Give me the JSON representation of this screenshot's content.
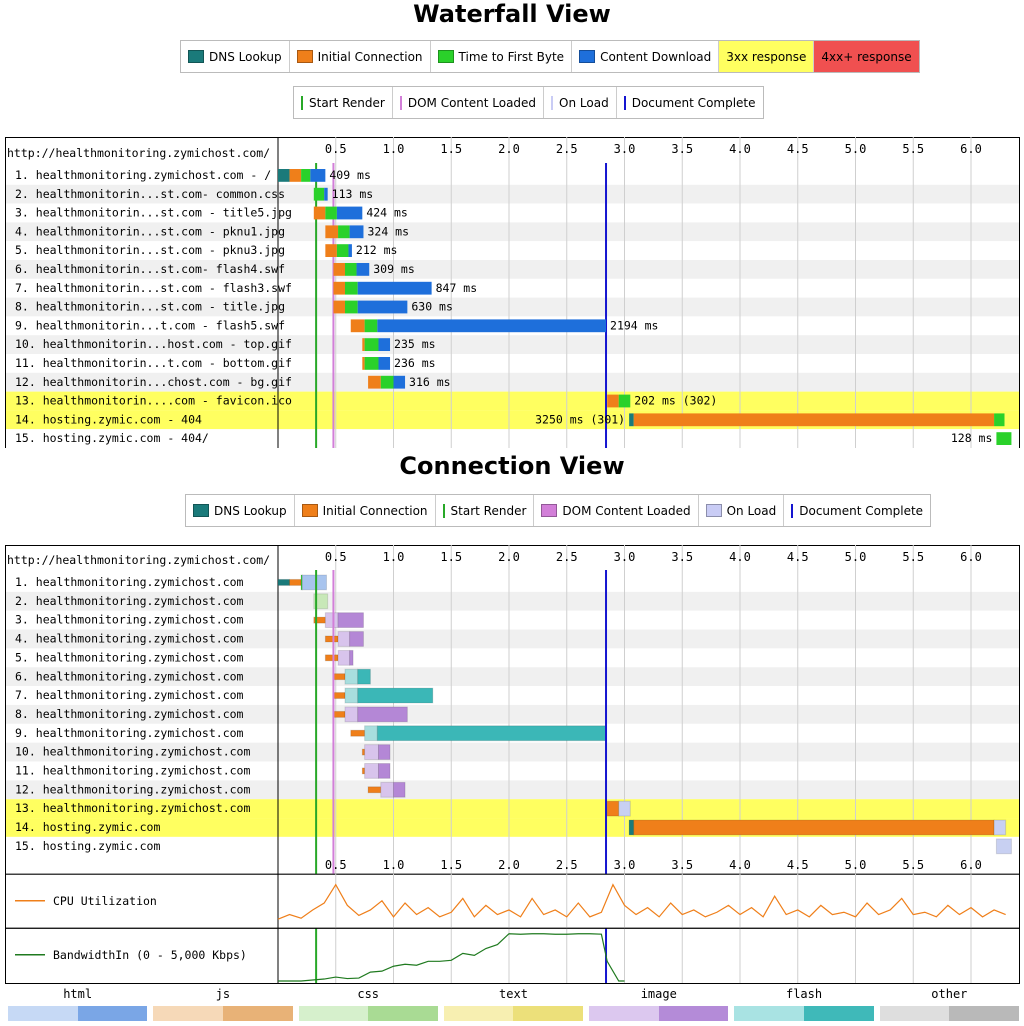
{
  "waterfall": {
    "title": "Waterfall View",
    "legend1": [
      {
        "label": "DNS Lookup",
        "color": "#1a7a7a"
      },
      {
        "label": "Initial Connection",
        "color": "#ef7f1a"
      },
      {
        "label": "Time to First Byte",
        "color": "#2ad12a"
      },
      {
        "label": "Content Download",
        "color": "#1e6fdb"
      },
      {
        "label": "3xx response",
        "color": "#ffff60"
      },
      {
        "label": "4xx+ response",
        "color": "#f05050"
      }
    ],
    "legend2": [
      {
        "label": "Start Render",
        "color": "#28a828"
      },
      {
        "label": "DOM Content Loaded",
        "color": "#d27fd8"
      },
      {
        "label": "On Load",
        "color": "#c9ccf5"
      },
      {
        "label": "Document Complete",
        "color": "#1515d0"
      }
    ],
    "url_header": "http://healthmonitoring.zymichost.com/"
  },
  "connection": {
    "title": "Connection View",
    "legend": [
      {
        "label": "DNS Lookup",
        "color": "#1a7a7a"
      },
      {
        "label": "Initial Connection",
        "color": "#ef7f1a"
      },
      {
        "label": "Start Render",
        "color": "#28a828",
        "line": true
      },
      {
        "label": "DOM Content Loaded",
        "color": "#d27fd8"
      },
      {
        "label": "On Load",
        "color": "#c9ccf5"
      },
      {
        "label": "Document Complete",
        "color": "#1515d0",
        "line": true
      }
    ],
    "url_header": "http://healthmonitoring.zymichost.com/",
    "cpu_label": "CPU Utilization",
    "bw_label": "BandwidthIn (0 - 5,000 Kbps)"
  },
  "content_key": [
    "html",
    "js",
    "css",
    "text",
    "image",
    "flash",
    "other"
  ],
  "chart_data": [
    {
      "type": "waterfall",
      "title": "Waterfall View",
      "xlim": [
        0,
        6.35
      ],
      "ticks": [
        0.5,
        1.0,
        1.5,
        2.0,
        2.5,
        3.0,
        3.5,
        4.0,
        4.5,
        5.0,
        5.5,
        6.0
      ],
      "tick_labels": [
        "0.5",
        "1.0",
        "1.5",
        "2.0",
        "2.5",
        "3.0",
        "3.5",
        "4.0",
        "4.5",
        "5.0",
        "5.5",
        "6.0"
      ],
      "markers": {
        "start_render": 0.33,
        "dom_content_loaded": 0.48,
        "document_complete": 2.84
      },
      "rows": [
        {
          "label": "1. healthmonitoring.zymichost.com - /",
          "time_label": "409 ms",
          "start": 0.0,
          "dns": 0.1,
          "conn": 0.1,
          "ttfb": 0.08,
          "dl": 0.13,
          "hl": ""
        },
        {
          "label": "2. healthmonitorin...st.com- common.css",
          "time_label": "113 ms",
          "start": 0.31,
          "dns": 0,
          "conn": 0,
          "ttfb": 0.09,
          "dl": 0.03,
          "hl": ""
        },
        {
          "label": "3. healthmonitorin...st.com - title5.jpg",
          "time_label": "424 ms",
          "start": 0.31,
          "dns": 0,
          "conn": 0.1,
          "ttfb": 0.1,
          "dl": 0.22,
          "hl": ""
        },
        {
          "label": "4. healthmonitorin...st.com - pknu1.jpg",
          "time_label": "324 ms",
          "start": 0.41,
          "dns": 0,
          "conn": 0.11,
          "ttfb": 0.1,
          "dl": 0.12,
          "hl": ""
        },
        {
          "label": "5. healthmonitorin...st.com - pknu3.jpg",
          "time_label": "212 ms",
          "start": 0.41,
          "dns": 0,
          "conn": 0.1,
          "ttfb": 0.1,
          "dl": 0.03,
          "hl": ""
        },
        {
          "label": "6. healthmonitorin...st.com- flash4.swf",
          "time_label": "309 ms",
          "start": 0.48,
          "dns": 0,
          "conn": 0.1,
          "ttfb": 0.1,
          "dl": 0.11,
          "hl": ""
        },
        {
          "label": "7. healthmonitorin...st.com - flash3.swf",
          "time_label": "847 ms",
          "start": 0.48,
          "dns": 0,
          "conn": 0.1,
          "ttfb": 0.11,
          "dl": 0.64,
          "hl": ""
        },
        {
          "label": "8. healthmonitorin...st.com - title.jpg",
          "time_label": "630 ms",
          "start": 0.48,
          "dns": 0,
          "conn": 0.1,
          "ttfb": 0.11,
          "dl": 0.43,
          "hl": ""
        },
        {
          "label": "9. healthmonitorin...t.com - flash5.swf",
          "time_label": "2194 ms",
          "start": 0.63,
          "dns": 0,
          "conn": 0.12,
          "ttfb": 0.11,
          "dl": 1.98,
          "hl": ""
        },
        {
          "label": "10. healthmonitorin...host.com - top.gif",
          "time_label": "235 ms",
          "start": 0.73,
          "dns": 0,
          "conn": 0.02,
          "ttfb": 0.12,
          "dl": 0.1,
          "hl": ""
        },
        {
          "label": "11. healthmonitorin...t.com - bottom.gif",
          "time_label": "236 ms",
          "start": 0.73,
          "dns": 0,
          "conn": 0.02,
          "ttfb": 0.12,
          "dl": 0.1,
          "hl": ""
        },
        {
          "label": "12. healthmonitorin...chost.com - bg.gif",
          "time_label": "316 ms",
          "start": 0.78,
          "dns": 0,
          "conn": 0.11,
          "ttfb": 0.11,
          "dl": 0.1,
          "hl": ""
        },
        {
          "label": "13. healthmonitorin....com - favicon.ico",
          "time_label": "202 ms (302)",
          "start": 2.85,
          "dns": 0,
          "conn": 0.1,
          "ttfb": 0.1,
          "dl": 0.0,
          "hl": "3xx"
        },
        {
          "label": "14. hosting.zymic.com - 404",
          "time_label": "3250 ms (301)",
          "start": 3.04,
          "dns": 0.04,
          "conn": 3.12,
          "ttfb": 0.09,
          "dl": 0.0,
          "hl": "3xx",
          "label_left": true
        },
        {
          "label": "15. hosting.zymic.com - 404/",
          "time_label": "128 ms",
          "start": 6.22,
          "dns": 0,
          "conn": 0,
          "ttfb": 0.13,
          "dl": 0.0,
          "hl": "",
          "label_left": true
        }
      ]
    },
    {
      "type": "connection",
      "title": "Connection View",
      "xlim": [
        0,
        6.35
      ],
      "tick_labels": [
        "0.5",
        "1.0",
        "1.5",
        "2.0",
        "2.5",
        "3.0",
        "3.5",
        "4.0",
        "4.5",
        "5.0",
        "5.5",
        "6.0"
      ],
      "rows": [
        {
          "label": "1. healthmonitoring.zymichost.com",
          "hl": "",
          "segs": [
            [
              0.0,
              0.1,
              "dns"
            ],
            [
              0.1,
              0.2,
              "conn"
            ],
            [
              0.2,
              0.21,
              "ttfb"
            ],
            [
              0.21,
              0.42,
              "html"
            ]
          ]
        },
        {
          "label": "2. healthmonitoring.zymichost.com",
          "hl": "",
          "segs": [
            [
              0.31,
              0.43,
              "css"
            ]
          ]
        },
        {
          "label": "3. healthmonitoring.zymichost.com",
          "hl": "",
          "segs": [
            [
              0.31,
              0.41,
              "conn"
            ],
            [
              0.41,
              0.52,
              "imglight"
            ],
            [
              0.52,
              0.74,
              "image"
            ]
          ]
        },
        {
          "label": "4. healthmonitoring.zymichost.com",
          "hl": "",
          "segs": [
            [
              0.41,
              0.52,
              "conn"
            ],
            [
              0.52,
              0.62,
              "imglight"
            ],
            [
              0.62,
              0.74,
              "image"
            ]
          ]
        },
        {
          "label": "5. healthmonitoring.zymichost.com",
          "hl": "",
          "segs": [
            [
              0.41,
              0.52,
              "conn"
            ],
            [
              0.52,
              0.62,
              "imglight"
            ],
            [
              0.62,
              0.65,
              "image"
            ]
          ]
        },
        {
          "label": "6. healthmonitoring.zymichost.com",
          "hl": "",
          "segs": [
            [
              0.48,
              0.58,
              "conn"
            ],
            [
              0.58,
              0.69,
              "flashlight"
            ],
            [
              0.69,
              0.8,
              "flash"
            ]
          ]
        },
        {
          "label": "7. healthmonitoring.zymichost.com",
          "hl": "",
          "segs": [
            [
              0.48,
              0.58,
              "conn"
            ],
            [
              0.58,
              0.69,
              "flashlight"
            ],
            [
              0.69,
              1.34,
              "flash"
            ]
          ]
        },
        {
          "label": "8. healthmonitoring.zymichost.com",
          "hl": "",
          "segs": [
            [
              0.48,
              0.58,
              "conn"
            ],
            [
              0.58,
              0.69,
              "imglight"
            ],
            [
              0.69,
              1.12,
              "image"
            ]
          ]
        },
        {
          "label": "9. healthmonitoring.zymichost.com",
          "hl": "",
          "segs": [
            [
              0.63,
              0.75,
              "conn"
            ],
            [
              0.75,
              0.86,
              "flashlight"
            ],
            [
              0.86,
              2.84,
              "flash"
            ]
          ]
        },
        {
          "label": "10. healthmonitoring.zymichost.com",
          "hl": "",
          "segs": [
            [
              0.73,
              0.75,
              "conn"
            ],
            [
              0.75,
              0.87,
              "imglight"
            ],
            [
              0.87,
              0.97,
              "image"
            ]
          ]
        },
        {
          "label": "11. healthmonitoring.zymichost.com",
          "hl": "",
          "segs": [
            [
              0.73,
              0.75,
              "conn"
            ],
            [
              0.75,
              0.87,
              "imglight"
            ],
            [
              0.87,
              0.97,
              "image"
            ]
          ]
        },
        {
          "label": "12. healthmonitoring.zymichost.com",
          "hl": "",
          "segs": [
            [
              0.78,
              0.89,
              "conn"
            ],
            [
              0.89,
              1.0,
              "imglight"
            ],
            [
              1.0,
              1.1,
              "image"
            ]
          ]
        },
        {
          "label": "13. healthmonitoring.zymichost.com",
          "hl": "3xx",
          "segs": [
            [
              2.85,
              2.95,
              "conn"
            ],
            [
              2.95,
              3.05,
              "other"
            ]
          ]
        },
        {
          "label": "14. hosting.zymic.com",
          "hl": "3xx",
          "segs": [
            [
              3.04,
              3.08,
              "dns"
            ],
            [
              3.08,
              6.2,
              "conn"
            ],
            [
              6.2,
              6.3,
              "other"
            ]
          ]
        },
        {
          "label": "15. hosting.zymic.com",
          "hl": "",
          "segs": [
            [
              6.22,
              6.35,
              "other"
            ]
          ]
        }
      ]
    },
    {
      "type": "line",
      "title": "CPU Utilization",
      "xlim": [
        0,
        6.35
      ],
      "ylim": [
        0,
        100
      ],
      "x": [
        0,
        0.1,
        0.2,
        0.3,
        0.4,
        0.5,
        0.6,
        0.7,
        0.8,
        0.9,
        1.0,
        1.1,
        1.2,
        1.3,
        1.4,
        1.5,
        1.6,
        1.7,
        1.8,
        1.9,
        2.0,
        2.1,
        2.2,
        2.3,
        2.4,
        2.5,
        2.6,
        2.7,
        2.8,
        2.9,
        3.0,
        3.1,
        3.2,
        3.3,
        3.4,
        3.5,
        3.6,
        3.7,
        3.8,
        3.9,
        4.0,
        4.1,
        4.2,
        4.3,
        4.4,
        4.5,
        4.6,
        4.7,
        4.8,
        4.9,
        5.0,
        5.1,
        5.2,
        5.3,
        5.4,
        5.5,
        5.6,
        5.7,
        5.8,
        5.9,
        6.0,
        6.1,
        6.2,
        6.3
      ],
      "y": [
        10,
        20,
        12,
        30,
        45,
        85,
        40,
        18,
        30,
        50,
        15,
        45,
        20,
        35,
        15,
        25,
        55,
        15,
        40,
        20,
        30,
        15,
        55,
        20,
        30,
        15,
        45,
        15,
        25,
        85,
        40,
        20,
        35,
        15,
        45,
        20,
        30,
        15,
        25,
        40,
        20,
        35,
        15,
        60,
        20,
        30,
        15,
        40,
        20,
        25,
        15,
        45,
        20,
        30,
        55,
        20,
        25,
        15,
        40,
        20,
        35,
        15,
        30,
        20
      ]
    },
    {
      "type": "line",
      "title": "BandwidthIn (0 - 5,000 Kbps)",
      "xlim": [
        0,
        6.35
      ],
      "ylim": [
        0,
        5000
      ],
      "x": [
        0,
        0.2,
        0.4,
        0.5,
        0.6,
        0.7,
        0.8,
        0.9,
        1.0,
        1.1,
        1.2,
        1.3,
        1.4,
        1.5,
        1.6,
        1.7,
        1.8,
        1.9,
        2.0,
        2.1,
        2.2,
        2.3,
        2.4,
        2.5,
        2.6,
        2.7,
        2.8,
        2.85,
        2.95,
        3.0
      ],
      "y": [
        0,
        0,
        200,
        400,
        250,
        300,
        900,
        1000,
        1500,
        1700,
        1600,
        2000,
        2000,
        2100,
        2800,
        2600,
        3300,
        3700,
        4800,
        4750,
        4800,
        4800,
        4750,
        4750,
        4800,
        4800,
        4750,
        2000,
        0,
        0
      ]
    }
  ]
}
